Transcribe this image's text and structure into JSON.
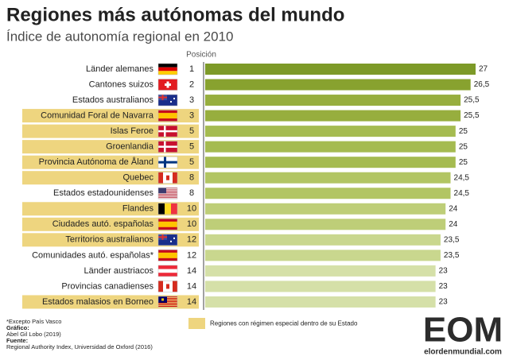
{
  "chart_data": {
    "type": "bar",
    "title": "Regiones más autónomas del mundo",
    "subtitle": "Índice de autonomía regional en 2010",
    "position_header": "Posición",
    "categories": [
      "Länder alemanes",
      "Cantones suizos",
      "Estados australianos",
      "Comunidad Foral de Navarra",
      "Islas Feroe",
      "Groenlandia",
      "Provincia Autónoma de Åland",
      "Quebec",
      "Estados estadounidenses",
      "Flandes",
      "Ciudades autó. españolas",
      "Territorios australianos",
      "Comunidades autó. españolas*",
      "Länder austriacos",
      "Provincias canadienses",
      "Estados malasios en Borneo"
    ],
    "positions": [
      1,
      2,
      3,
      3,
      5,
      5,
      5,
      8,
      8,
      10,
      10,
      12,
      12,
      14,
      14,
      14
    ],
    "values": [
      27,
      26.5,
      25.5,
      25.5,
      25,
      25,
      25,
      24.5,
      24.5,
      24,
      24,
      23.5,
      23.5,
      23,
      23,
      23
    ],
    "value_labels": [
      "27",
      "26,5",
      "25,5",
      "25,5",
      "25",
      "25",
      "25",
      "24,5",
      "24,5",
      "24",
      "24",
      "23,5",
      "23,5",
      "23",
      "23",
      "23"
    ],
    "colors": [
      "#7d9a28",
      "#88a22f",
      "#97ae3e",
      "#97ae3e",
      "#a5bb50",
      "#a5bb50",
      "#a5bb50",
      "#b2c563",
      "#b2c563",
      "#bece78",
      "#bece78",
      "#c9d78e",
      "#c9d78e",
      "#d5e0a8",
      "#d5e0a8",
      "#d5e0a8"
    ],
    "special": [
      false,
      false,
      false,
      true,
      true,
      true,
      true,
      true,
      false,
      true,
      true,
      true,
      false,
      false,
      false,
      true
    ],
    "special_color": "#eed57f",
    "legend": "Regiones con régimen especial dentro de su Estado",
    "notes": [
      "*Excepto País Vasco",
      "Gráfico:",
      "Abel Gil Lobo (2019)",
      "Fuente:",
      "Regional Authority Index, Universidad de Oxford (2016)"
    ],
    "logo": "EOM",
    "website": "elordenmundial.com"
  }
}
